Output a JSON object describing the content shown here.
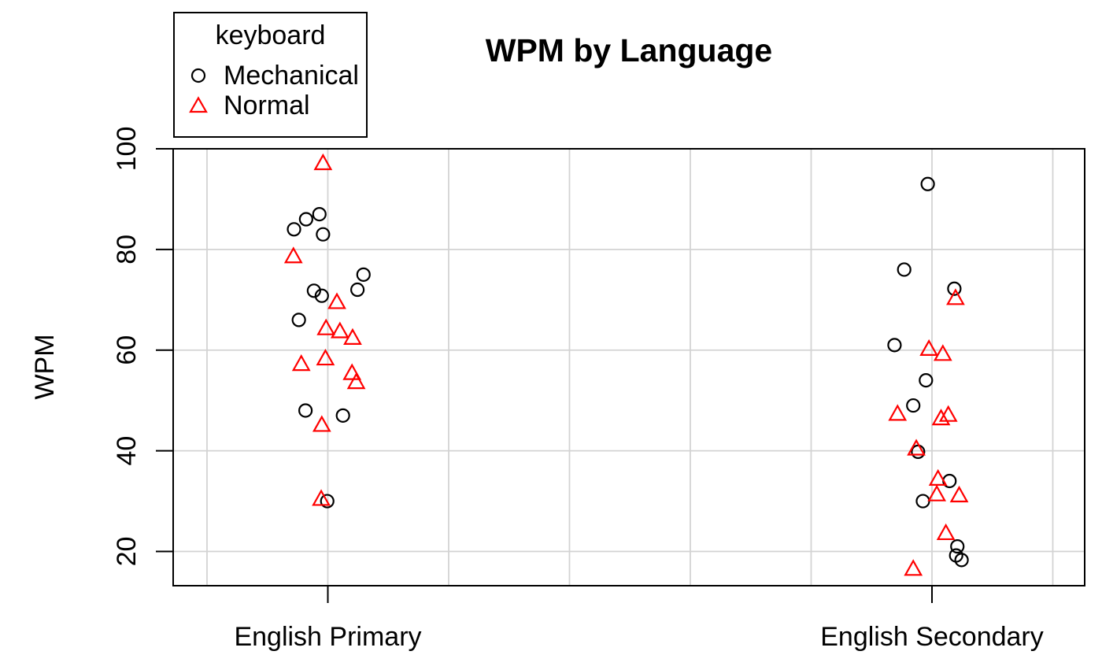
{
  "title": "WPM by Language",
  "y_axis": {
    "label": "WPM",
    "ticks": [
      20,
      40,
      60,
      80,
      100
    ]
  },
  "x_axis": {
    "groups": [
      "English Primary",
      "English Secondary"
    ]
  },
  "legend": {
    "title": "keyboard",
    "items": [
      {
        "label": "Mechanical",
        "symbol": "circle",
        "color": "#000000"
      },
      {
        "label": "Normal",
        "symbol": "triangle",
        "color": "#ff0000"
      }
    ]
  },
  "colors": {
    "mechanical": "#000000",
    "normal": "#ff0000",
    "grid": "#d3d3d3",
    "axis": "#000000",
    "background": "#ffffff"
  },
  "chart_data": {
    "type": "scatter",
    "title": "WPM by Language",
    "xlabel": "",
    "ylabel": "WPM",
    "ylim": [
      13.2,
      100
    ],
    "xlim": [
      0.744,
      2.253
    ],
    "grid": true,
    "legend_position": "top-left",
    "x_gridlines": [
      0.8,
      1.0,
      1.2,
      1.4,
      1.6,
      1.8,
      2.0,
      2.2
    ],
    "y_gridlines": [
      20,
      40,
      60,
      80,
      100
    ],
    "groups": [
      {
        "name": "English Primary",
        "x": 1
      },
      {
        "name": "English Secondary",
        "x": 2
      }
    ],
    "series": [
      {
        "name": "Mechanical",
        "symbol": "circle",
        "color": "#000000",
        "points": [
          {
            "x": 0.986,
            "y": 87.0
          },
          {
            "x": 0.964,
            "y": 86.0
          },
          {
            "x": 0.944,
            "y": 84.0
          },
          {
            "x": 0.992,
            "y": 83.0
          },
          {
            "x": 1.059,
            "y": 75.0
          },
          {
            "x": 1.049,
            "y": 72.0
          },
          {
            "x": 0.977,
            "y": 71.8
          },
          {
            "x": 0.99,
            "y": 70.8
          },
          {
            "x": 0.952,
            "y": 66.0
          },
          {
            "x": 0.963,
            "y": 48.0
          },
          {
            "x": 1.025,
            "y": 47.0
          },
          {
            "x": 0.999,
            "y": 30.0
          },
          {
            "x": 1.993,
            "y": 93.0
          },
          {
            "x": 1.954,
            "y": 76.0
          },
          {
            "x": 2.037,
            "y": 72.2
          },
          {
            "x": 1.938,
            "y": 61.0
          },
          {
            "x": 1.99,
            "y": 54.0
          },
          {
            "x": 1.969,
            "y": 49.0
          },
          {
            "x": 1.977,
            "y": 39.8
          },
          {
            "x": 2.029,
            "y": 34.0
          },
          {
            "x": 1.985,
            "y": 30.0
          },
          {
            "x": 2.042,
            "y": 21.0
          },
          {
            "x": 2.04,
            "y": 19.2
          },
          {
            "x": 2.049,
            "y": 18.3
          }
        ]
      },
      {
        "name": "Normal",
        "symbol": "triangle",
        "color": "#ff0000",
        "points": [
          {
            "x": 0.992,
            "y": 97.0
          },
          {
            "x": 0.943,
            "y": 78.5
          },
          {
            "x": 1.015,
            "y": 69.4
          },
          {
            "x": 0.997,
            "y": 64.2
          },
          {
            "x": 1.02,
            "y": 63.6
          },
          {
            "x": 1.041,
            "y": 62.3
          },
          {
            "x": 0.996,
            "y": 58.2
          },
          {
            "x": 0.956,
            "y": 57.1
          },
          {
            "x": 1.04,
            "y": 55.3
          },
          {
            "x": 1.047,
            "y": 53.5
          },
          {
            "x": 0.99,
            "y": 45.0
          },
          {
            "x": 0.989,
            "y": 30.3
          },
          {
            "x": 2.039,
            "y": 70.2
          },
          {
            "x": 1.995,
            "y": 60.1
          },
          {
            "x": 2.018,
            "y": 59.1
          },
          {
            "x": 1.943,
            "y": 47.2
          },
          {
            "x": 2.027,
            "y": 47.0
          },
          {
            "x": 2.015,
            "y": 46.3
          },
          {
            "x": 1.974,
            "y": 40.3
          },
          {
            "x": 2.01,
            "y": 34.3
          },
          {
            "x": 2.008,
            "y": 31.2
          },
          {
            "x": 2.045,
            "y": 31.0
          },
          {
            "x": 2.023,
            "y": 23.5
          },
          {
            "x": 1.969,
            "y": 16.4
          }
        ]
      }
    ]
  }
}
